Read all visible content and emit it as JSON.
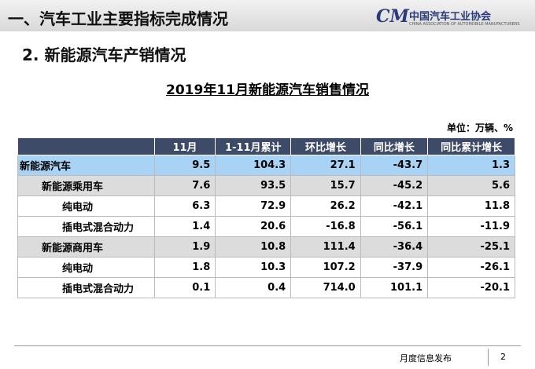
{
  "header": {
    "title": "一、汽车工业主要指标完成情况",
    "logo_name": "中国汽车工业协会",
    "logo_sub": "CHINA ASSOCIATION OF AUTOMOBILE MANUFACTURERS"
  },
  "section": "2. 新能源汽车产销情况",
  "table": {
    "title": "2019年11月新能源汽车销售情况",
    "unit": "单位：万辆、%",
    "columns": [
      "",
      "11月",
      "1-11月累计",
      "环比增长",
      "同比增长",
      "同比累计增长"
    ],
    "rows": [
      [
        "新能源汽车",
        "9.5",
        "104.3",
        "27.1",
        "-43.7",
        "1.3"
      ],
      [
        "新能源乘用车",
        "7.6",
        "93.5",
        "15.7",
        "-45.2",
        "5.6"
      ],
      [
        "纯电动",
        "6.3",
        "72.9",
        "26.2",
        "-42.1",
        "11.8"
      ],
      [
        "插电式混合动力",
        "1.4",
        "20.6",
        "-16.8",
        "-56.1",
        "-11.9"
      ],
      [
        "新能源商用车",
        "1.9",
        "10.8",
        "111.4",
        "-36.4",
        "-25.1"
      ],
      [
        "纯电动",
        "1.8",
        "10.3",
        "107.2",
        "-37.9",
        "-26.1"
      ],
      [
        "插电式混合动力",
        "0.1",
        "0.4",
        "714.0",
        "101.1",
        "-20.1"
      ]
    ]
  },
  "footer": {
    "label": "月度信息发布",
    "page": "2"
  }
}
